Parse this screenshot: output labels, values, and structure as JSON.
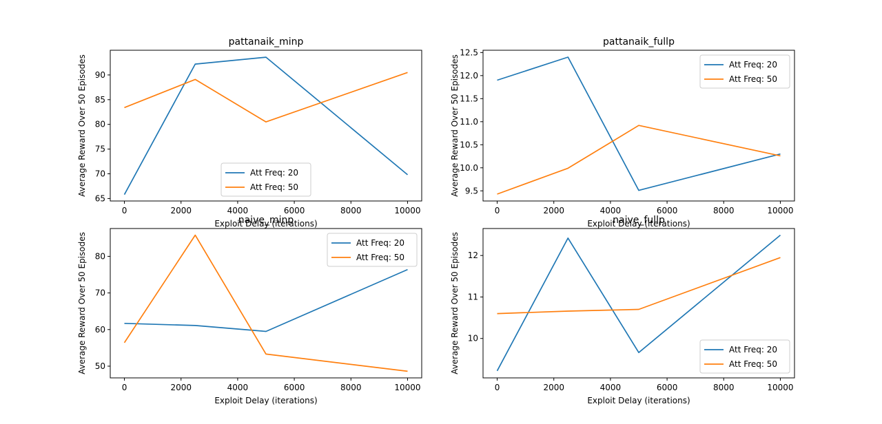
{
  "colors": {
    "series_1": "#1f77b4",
    "series_2": "#ff7f0e"
  },
  "chart_data": [
    {
      "type": "line",
      "title": "pattanaik_minp",
      "xlabel": "Exploit Delay (iterations)",
      "ylabel": "Average Reward Over 50 Episodes",
      "x": [
        0,
        2500,
        5000,
        10000
      ],
      "xlim": [
        -500,
        10500
      ],
      "ylim": [
        64.5,
        95.0
      ],
      "xticks": [
        0,
        2000,
        4000,
        6000,
        8000,
        10000
      ],
      "yticks": [
        65,
        70,
        75,
        80,
        85,
        90
      ],
      "legend_position": "lower center",
      "grid": false,
      "series": [
        {
          "name": "Att Freq: 20",
          "values": [
            65.8,
            92.2,
            93.6,
            69.8
          ]
        },
        {
          "name": "Att Freq: 50",
          "values": [
            83.4,
            89.1,
            80.5,
            90.5
          ]
        }
      ]
    },
    {
      "type": "line",
      "title": "pattanaik_fullp",
      "xlabel": "Exploit Delay (iterations)",
      "ylabel": "Average Reward Over 50 Episodes",
      "x": [
        0,
        2500,
        5000,
        10000
      ],
      "xlim": [
        -500,
        10500
      ],
      "ylim": [
        9.28,
        12.55
      ],
      "xticks": [
        0,
        2000,
        4000,
        6000,
        8000,
        10000
      ],
      "yticks": [
        9.5,
        10.0,
        10.5,
        11.0,
        11.5,
        12.0,
        12.5
      ],
      "ytick_decimals": 1,
      "legend_position": "upper right",
      "grid": false,
      "series": [
        {
          "name": "Att Freq: 20",
          "values": [
            11.9,
            12.4,
            9.51,
            10.3
          ]
        },
        {
          "name": "Att Freq: 50",
          "values": [
            9.43,
            9.99,
            10.92,
            10.26
          ]
        }
      ]
    },
    {
      "type": "line",
      "title": "naive_minp",
      "xlabel": "Exploit Delay (iterations)",
      "ylabel": "Average Reward Over 50 Episodes",
      "x": [
        0,
        2500,
        5000,
        10000
      ],
      "xlim": [
        -500,
        10500
      ],
      "ylim": [
        46.8,
        87.6
      ],
      "xticks": [
        0,
        2000,
        4000,
        6000,
        8000,
        10000
      ],
      "yticks": [
        50,
        60,
        70,
        80
      ],
      "legend_position": "upper right",
      "grid": false,
      "series": [
        {
          "name": "Att Freq: 20",
          "values": [
            61.7,
            61.1,
            59.5,
            76.4
          ]
        },
        {
          "name": "Att Freq: 50",
          "values": [
            56.4,
            85.8,
            53.3,
            48.6
          ]
        }
      ]
    },
    {
      "type": "line",
      "title": "naive_fullp",
      "xlabel": "Exploit Delay (iterations)",
      "ylabel": "Average Reward Over 50 Episodes",
      "x": [
        0,
        2500,
        5000,
        10000
      ],
      "xlim": [
        -500,
        10500
      ],
      "ylim": [
        9.05,
        12.65
      ],
      "xticks": [
        0,
        2000,
        4000,
        6000,
        8000,
        10000
      ],
      "yticks": [
        10,
        11,
        12
      ],
      "legend_position": "lower right",
      "grid": false,
      "series": [
        {
          "name": "Att Freq: 20",
          "values": [
            9.22,
            12.42,
            9.66,
            12.49
          ]
        },
        {
          "name": "Att Freq: 50",
          "values": [
            10.6,
            10.66,
            10.7,
            11.95
          ]
        }
      ]
    }
  ]
}
